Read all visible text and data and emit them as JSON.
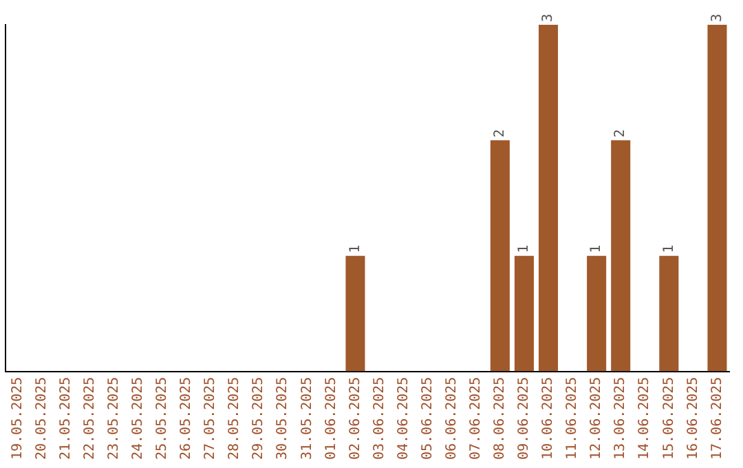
{
  "chart_data": {
    "type": "bar",
    "categories": [
      "19.05.2025",
      "20.05.2025",
      "21.05.2025",
      "22.05.2025",
      "23.05.2025",
      "24.05.2025",
      "25.05.2025",
      "26.05.2025",
      "27.05.2025",
      "28.05.2025",
      "29.05.2025",
      "30.05.2025",
      "31.05.2025",
      "01.06.2025",
      "02.06.2025",
      "03.06.2025",
      "04.06.2025",
      "05.06.2025",
      "06.06.2025",
      "07.06.2025",
      "08.06.2025",
      "09.06.2025",
      "10.06.2025",
      "11.06.2025",
      "12.06.2025",
      "13.06.2025",
      "14.06.2025",
      "15.06.2025",
      "16.06.2025",
      "17.06.2025"
    ],
    "values": [
      null,
      null,
      null,
      null,
      null,
      null,
      null,
      null,
      null,
      null,
      null,
      null,
      null,
      null,
      1,
      null,
      null,
      null,
      null,
      null,
      2,
      1,
      3,
      null,
      1,
      2,
      null,
      1,
      null,
      3
    ],
    "data_labels": true,
    "color": "#a0592b",
    "grid": false,
    "legend": false,
    "tick_labels": "x"
  }
}
